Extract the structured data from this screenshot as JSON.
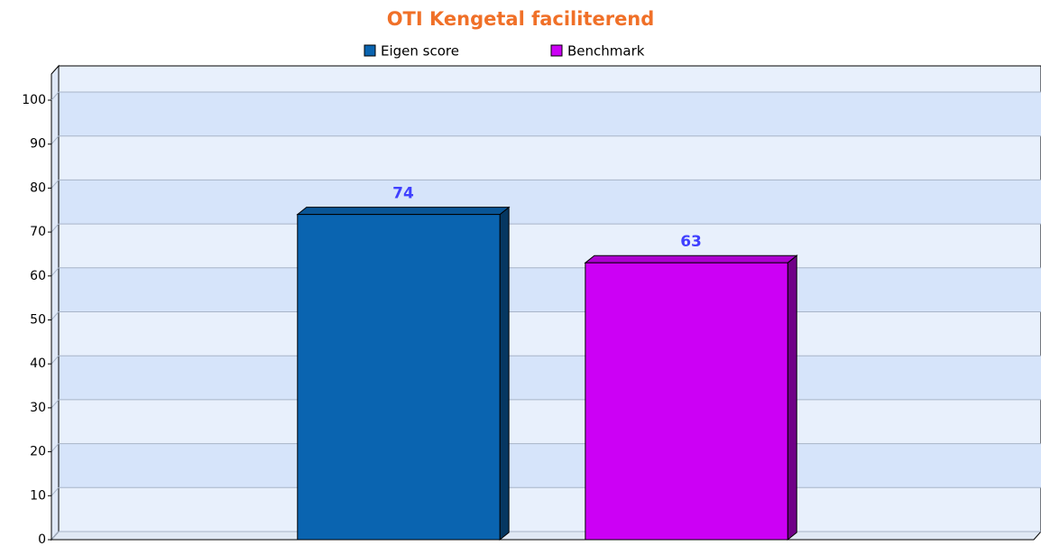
{
  "chart_data": {
    "type": "bar",
    "title": "OTI Kengetal faciliterend",
    "categories": [
      null
    ],
    "series": [
      {
        "name": "Eigen score",
        "color": "#0a64b0",
        "values": [
          74
        ]
      },
      {
        "name": "Benchmark",
        "color": "#cc00f5",
        "values": [
          63
        ]
      }
    ],
    "ylim": [
      0,
      100
    ],
    "yticks": [
      0,
      10,
      20,
      30,
      40,
      50,
      60,
      70,
      80,
      90,
      100
    ],
    "grid": true,
    "legend": "top",
    "value_label_color": "#4040ff"
  }
}
